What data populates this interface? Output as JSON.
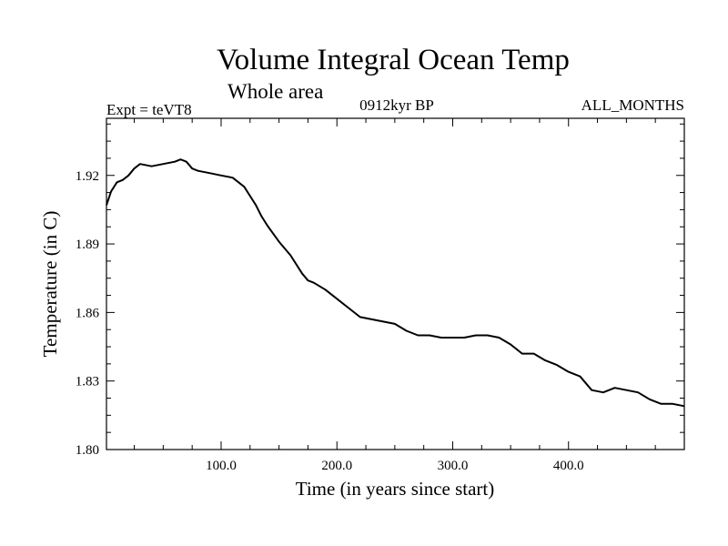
{
  "chart_data": {
    "type": "line",
    "title": "Volume Integral Ocean Temp",
    "subtitle": "Whole area",
    "experiment_label": "Expt = teVT8",
    "period_label": "0912kyr BP",
    "months_label": "ALL_MONTHS",
    "xlabel": "Time (in years since start)",
    "ylabel": "Temperature (in C)",
    "xlim": [
      1,
      500
    ],
    "ylim": [
      1.8,
      1.945
    ],
    "x_ticks": [
      100,
      200,
      300,
      400
    ],
    "x_tick_labels": [
      "100.0",
      "200.0",
      "300.0",
      "400.0"
    ],
    "y_ticks": [
      1.8,
      1.83,
      1.86,
      1.89,
      1.92
    ],
    "y_tick_labels": [
      "1.80",
      "1.83",
      "1.86",
      "1.89",
      "1.92"
    ],
    "series": [
      {
        "name": "Volume integral ocean temperature",
        "x": [
          1,
          5,
          10,
          15,
          20,
          25,
          30,
          40,
          50,
          60,
          65,
          70,
          75,
          80,
          90,
          100,
          110,
          115,
          120,
          125,
          130,
          135,
          140,
          150,
          160,
          170,
          175,
          180,
          190,
          200,
          210,
          220,
          230,
          240,
          250,
          260,
          270,
          280,
          290,
          300,
          310,
          320,
          330,
          340,
          350,
          360,
          370,
          380,
          390,
          400,
          410,
          420,
          430,
          440,
          450,
          460,
          470,
          480,
          490,
          500
        ],
        "values": [
          1.907,
          1.913,
          1.917,
          1.918,
          1.92,
          1.923,
          1.925,
          1.924,
          1.925,
          1.926,
          1.927,
          1.926,
          1.923,
          1.922,
          1.921,
          1.92,
          1.919,
          1.917,
          1.915,
          1.911,
          1.907,
          1.902,
          1.898,
          1.891,
          1.885,
          1.877,
          1.874,
          1.873,
          1.87,
          1.866,
          1.862,
          1.858,
          1.857,
          1.856,
          1.855,
          1.852,
          1.85,
          1.85,
          1.849,
          1.849,
          1.849,
          1.85,
          1.85,
          1.849,
          1.846,
          1.842,
          1.842,
          1.839,
          1.837,
          1.834,
          1.832,
          1.826,
          1.825,
          1.827,
          1.826,
          1.825,
          1.822,
          1.82,
          1.82,
          1.819
        ]
      }
    ]
  }
}
